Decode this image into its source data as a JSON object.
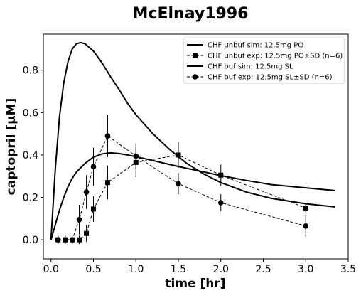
{
  "chart_data": {
    "type": "line",
    "title": "McElnay1996",
    "xlabel": "time [hr]",
    "ylabel": "captopril [μM]",
    "xlim": [
      -0.09,
      3.5
    ],
    "ylim": [
      -0.09,
      0.97
    ],
    "xticks": [
      "0.0",
      "0.5",
      "1.0",
      "1.5",
      "2.0",
      "2.5",
      "3.0",
      "3.5"
    ],
    "xtick_values": [
      0,
      0.5,
      1.0,
      1.5,
      2.0,
      2.5,
      3.0,
      3.5
    ],
    "yticks": [
      "0.0",
      "0.2",
      "0.4",
      "0.6",
      "0.8"
    ],
    "ytick_values": [
      0,
      0.2,
      0.4,
      0.6,
      0.8
    ],
    "grid": false,
    "legend_position": "top-right",
    "series": [
      {
        "name": "CHF unbuf sim: 12.5mg PO",
        "style": "solid",
        "marker": "none",
        "x": [
          0.0,
          0.05,
          0.1,
          0.15,
          0.2,
          0.25,
          0.3,
          0.4,
          0.5,
          0.6,
          0.7,
          0.8,
          0.9,
          1.0,
          1.2,
          1.4,
          1.6,
          1.8,
          2.0,
          2.3,
          2.6,
          3.0,
          3.35
        ],
        "y": [
          0.0,
          0.07,
          0.14,
          0.2,
          0.25,
          0.29,
          0.32,
          0.36,
          0.39,
          0.405,
          0.41,
          0.407,
          0.4,
          0.392,
          0.374,
          0.355,
          0.337,
          0.32,
          0.303,
          0.28,
          0.26,
          0.245,
          0.232
        ]
      },
      {
        "name": "CHF unbuf exp: 12.5mg PO±SD (n=6)",
        "style": "dashed",
        "marker": "square",
        "x": [
          0.083,
          0.167,
          0.25,
          0.333,
          0.417,
          0.5,
          0.667,
          1.0,
          1.5,
          2.0,
          3.0
        ],
        "y": [
          0.0,
          0.0,
          0.0,
          0.0,
          0.03,
          0.145,
          0.27,
          0.365,
          0.4,
          0.305,
          0.15
        ],
        "sd": [
          0.02,
          0.02,
          0.02,
          0.02,
          0.04,
          0.06,
          0.08,
          0.07,
          0.06,
          0.05,
          0.02
        ]
      },
      {
        "name": "CHF buf sim: 12.5mg SL",
        "style": "solid",
        "marker": "none",
        "x": [
          0.0,
          0.05,
          0.1,
          0.15,
          0.2,
          0.25,
          0.3,
          0.35,
          0.4,
          0.5,
          0.6,
          0.7,
          0.8,
          0.9,
          1.0,
          1.2,
          1.4,
          1.6,
          1.8,
          2.0,
          2.3,
          2.6,
          3.0,
          3.35
        ],
        "y": [
          0.0,
          0.33,
          0.58,
          0.74,
          0.84,
          0.9,
          0.925,
          0.93,
          0.925,
          0.89,
          0.835,
          0.77,
          0.71,
          0.645,
          0.59,
          0.5,
          0.425,
          0.36,
          0.31,
          0.27,
          0.225,
          0.195,
          0.17,
          0.155
        ]
      },
      {
        "name": "CHF buf exp: 12.5mg SL±SD (n=6)",
        "style": "dashed",
        "marker": "circle",
        "x": [
          0.083,
          0.167,
          0.25,
          0.333,
          0.417,
          0.5,
          0.667,
          1.0,
          1.5,
          2.0,
          3.0
        ],
        "y": [
          0.0,
          0.0,
          0.0,
          0.095,
          0.225,
          0.345,
          0.49,
          0.395,
          0.265,
          0.175,
          0.065
        ],
        "sd": [
          0.02,
          0.02,
          0.02,
          0.07,
          0.08,
          0.09,
          0.1,
          0.06,
          0.05,
          0.04,
          0.05
        ]
      }
    ]
  }
}
